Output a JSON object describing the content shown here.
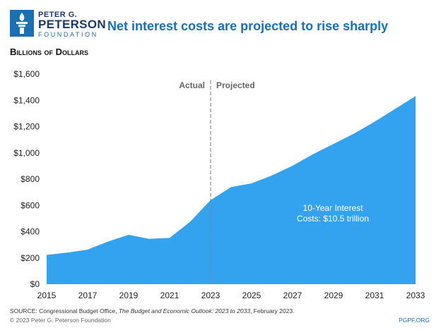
{
  "logo": {
    "line1": "PETER G.",
    "line2": "PETERSON",
    "line3": "FOUNDATION"
  },
  "headline": "Net interest costs are projected to rise sharply",
  "unit_label": "Billions of Dollars",
  "colors": {
    "area": "#33a3f0",
    "headline": "#1a6fb5",
    "logo_dark": "#1a3a6e",
    "divider": "#888888"
  },
  "chart_data": {
    "type": "area",
    "x": [
      2015,
      2016,
      2017,
      2018,
      2019,
      2020,
      2021,
      2022,
      2023,
      2024,
      2025,
      2026,
      2027,
      2028,
      2029,
      2030,
      2031,
      2032,
      2033
    ],
    "series": [
      {
        "values": [
          223,
          240,
          263,
          325,
          376,
          345,
          352,
          475,
          640,
          740,
          768,
          828,
          902,
          990,
          1068,
          1147,
          1237,
          1334,
          1432
        ]
      }
    ],
    "xticks": [
      "2015",
      "2017",
      "2019",
      "2021",
      "2023",
      "2025",
      "2027",
      "2029",
      "2031",
      "2033"
    ],
    "yticks": [
      "$0",
      "$200",
      "$400",
      "$600",
      "$800",
      "$1,000",
      "$1,200",
      "$1,400",
      "$1,600"
    ],
    "ylim": [
      0,
      1600
    ],
    "xlim": [
      2015,
      2033
    ],
    "divider_year": 2023,
    "marker_left": "Actual",
    "marker_right": "Projected",
    "annotation_line1": "10-Year Interest",
    "annotation_line2": "Costs: $10.5 trillion",
    "grid": false
  },
  "footer": {
    "source_prefix": "SOURCE: Congressional Budget Office, ",
    "source_title": "The Budget and Economic Outlook: 2023 to 2033",
    "source_suffix": ", February 2023.",
    "copyright": "© 2023 Peter G. Peterson Foundation",
    "url": "PGPF.ORG"
  }
}
